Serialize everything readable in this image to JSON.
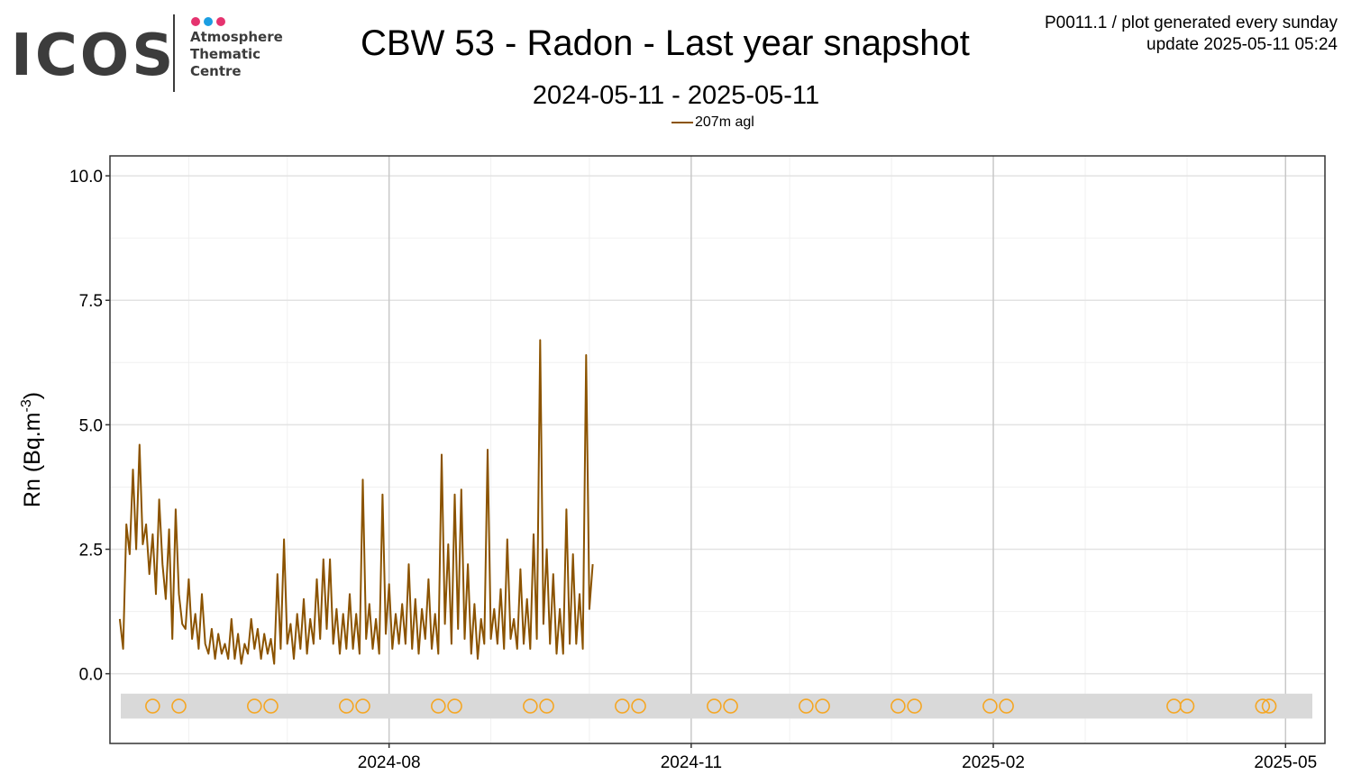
{
  "header": {
    "logo_text": "ICOS",
    "logo_sub": [
      "Atmosphere",
      "Thematic",
      "Centre"
    ],
    "logo_dot_colors": [
      "#e5336f",
      "#1b9ee2",
      "#e5336f"
    ],
    "title": "CBW 53 - Radon - Last year snapshot",
    "subtitle": "2024-05-11 - 2025-05-11",
    "info_line1": "P0011.1 / plot generated every sunday",
    "info_line2": "update  2025-05-11 05:24"
  },
  "legend": {
    "label": "207m agl",
    "color": "#8b5300"
  },
  "chart_data": {
    "type": "line",
    "title": "CBW 53 - Radon - Last year snapshot",
    "subtitle": "2024-05-11 - 2025-05-11",
    "ylabel": "Rn (Bq.m-3)",
    "ylim": [
      -1.4,
      10.4
    ],
    "xlim": [
      "2024-05-08",
      "2025-05-13"
    ],
    "y_ticks": [
      0.0,
      2.5,
      5.0,
      7.5,
      10.0
    ],
    "y_tick_labels": [
      "0.0",
      "2.5",
      "5.0",
      "7.5",
      "10.0"
    ],
    "x_ticks": [
      "2024-08-01",
      "2024-11-01",
      "2025-02-01",
      "2025-05-01"
    ],
    "x_tick_labels": [
      "2024-08",
      "2024-11",
      "2025-02",
      "2025-05"
    ],
    "x_minor_ticks": [
      "2024-06-01",
      "2024-07-01",
      "2024-09-01",
      "2024-10-01",
      "2024-12-01",
      "2025-01-01",
      "2025-03-01",
      "2025-04-01"
    ],
    "grid": true,
    "legend_position": "top",
    "series": [
      {
        "name": "207m agl",
        "color": "#8b5300",
        "points": [
          [
            "2024-05-11",
            1.1
          ],
          [
            "2024-05-12",
            0.5
          ],
          [
            "2024-05-13",
            3.0
          ],
          [
            "2024-05-14",
            2.4
          ],
          [
            "2024-05-15",
            4.1
          ],
          [
            "2024-05-16",
            2.5
          ],
          [
            "2024-05-17",
            4.6
          ],
          [
            "2024-05-18",
            2.6
          ],
          [
            "2024-05-19",
            3.0
          ],
          [
            "2024-05-20",
            2.0
          ],
          [
            "2024-05-21",
            2.8
          ],
          [
            "2024-05-22",
            1.6
          ],
          [
            "2024-05-23",
            3.5
          ],
          [
            "2024-05-24",
            2.2
          ],
          [
            "2024-05-25",
            1.5
          ],
          [
            "2024-05-26",
            2.9
          ],
          [
            "2024-05-27",
            0.7
          ],
          [
            "2024-05-28",
            3.3
          ],
          [
            "2024-05-29",
            1.6
          ],
          [
            "2024-05-30",
            1.0
          ],
          [
            "2024-05-31",
            0.9
          ],
          [
            "2024-06-01",
            1.9
          ],
          [
            "2024-06-02",
            0.7
          ],
          [
            "2024-06-03",
            1.2
          ],
          [
            "2024-06-04",
            0.5
          ],
          [
            "2024-06-05",
            1.6
          ],
          [
            "2024-06-06",
            0.6
          ],
          [
            "2024-06-07",
            0.4
          ],
          [
            "2024-06-08",
            0.9
          ],
          [
            "2024-06-09",
            0.3
          ],
          [
            "2024-06-10",
            0.8
          ],
          [
            "2024-06-11",
            0.4
          ],
          [
            "2024-06-12",
            0.6
          ],
          [
            "2024-06-13",
            0.3
          ],
          [
            "2024-06-14",
            1.1
          ],
          [
            "2024-06-15",
            0.3
          ],
          [
            "2024-06-16",
            0.8
          ],
          [
            "2024-06-17",
            0.2
          ],
          [
            "2024-06-18",
            0.6
          ],
          [
            "2024-06-19",
            0.4
          ],
          [
            "2024-06-20",
            1.1
          ],
          [
            "2024-06-21",
            0.5
          ],
          [
            "2024-06-22",
            0.9
          ],
          [
            "2024-06-23",
            0.3
          ],
          [
            "2024-06-24",
            0.8
          ],
          [
            "2024-06-25",
            0.4
          ],
          [
            "2024-06-26",
            0.7
          ],
          [
            "2024-06-27",
            0.2
          ],
          [
            "2024-06-28",
            2.0
          ],
          [
            "2024-06-29",
            0.5
          ],
          [
            "2024-06-30",
            2.7
          ],
          [
            "2024-07-01",
            0.6
          ],
          [
            "2024-07-02",
            1.0
          ],
          [
            "2024-07-03",
            0.3
          ],
          [
            "2024-07-04",
            1.2
          ],
          [
            "2024-07-05",
            0.5
          ],
          [
            "2024-07-06",
            1.5
          ],
          [
            "2024-07-07",
            0.4
          ],
          [
            "2024-07-08",
            1.1
          ],
          [
            "2024-07-09",
            0.6
          ],
          [
            "2024-07-10",
            1.9
          ],
          [
            "2024-07-11",
            0.7
          ],
          [
            "2024-07-12",
            2.3
          ],
          [
            "2024-07-13",
            0.9
          ],
          [
            "2024-07-14",
            2.3
          ],
          [
            "2024-07-15",
            0.6
          ],
          [
            "2024-07-16",
            1.3
          ],
          [
            "2024-07-17",
            0.4
          ],
          [
            "2024-07-18",
            1.2
          ],
          [
            "2024-07-19",
            0.5
          ],
          [
            "2024-07-20",
            1.6
          ],
          [
            "2024-07-21",
            0.5
          ],
          [
            "2024-07-22",
            1.2
          ],
          [
            "2024-07-23",
            0.4
          ],
          [
            "2024-07-24",
            3.9
          ],
          [
            "2024-07-25",
            0.7
          ],
          [
            "2024-07-26",
            1.4
          ],
          [
            "2024-07-27",
            0.5
          ],
          [
            "2024-07-28",
            1.1
          ],
          [
            "2024-07-29",
            0.4
          ],
          [
            "2024-07-30",
            3.6
          ],
          [
            "2024-07-31",
            0.8
          ],
          [
            "2024-08-01",
            1.8
          ],
          [
            "2024-08-02",
            0.5
          ],
          [
            "2024-08-03",
            1.2
          ],
          [
            "2024-08-04",
            0.6
          ],
          [
            "2024-08-05",
            1.4
          ],
          [
            "2024-08-06",
            0.6
          ],
          [
            "2024-08-07",
            2.2
          ],
          [
            "2024-08-08",
            0.5
          ],
          [
            "2024-08-09",
            1.5
          ],
          [
            "2024-08-10",
            0.4
          ],
          [
            "2024-08-11",
            1.3
          ],
          [
            "2024-08-12",
            0.7
          ],
          [
            "2024-08-13",
            1.9
          ],
          [
            "2024-08-14",
            0.5
          ],
          [
            "2024-08-15",
            1.2
          ],
          [
            "2024-08-16",
            0.4
          ],
          [
            "2024-08-17",
            4.4
          ],
          [
            "2024-08-18",
            1.0
          ],
          [
            "2024-08-19",
            2.6
          ],
          [
            "2024-08-20",
            0.6
          ],
          [
            "2024-08-21",
            3.6
          ],
          [
            "2024-08-22",
            0.9
          ],
          [
            "2024-08-23",
            3.7
          ],
          [
            "2024-08-24",
            0.7
          ],
          [
            "2024-08-25",
            2.2
          ],
          [
            "2024-08-26",
            0.4
          ],
          [
            "2024-08-27",
            1.4
          ],
          [
            "2024-08-28",
            0.3
          ],
          [
            "2024-08-29",
            1.1
          ],
          [
            "2024-08-30",
            0.6
          ],
          [
            "2024-08-31",
            4.5
          ],
          [
            "2024-09-01",
            0.7
          ],
          [
            "2024-09-02",
            1.3
          ],
          [
            "2024-09-03",
            0.6
          ],
          [
            "2024-09-04",
            1.7
          ],
          [
            "2024-09-05",
            0.5
          ],
          [
            "2024-09-06",
            2.7
          ],
          [
            "2024-09-07",
            0.7
          ],
          [
            "2024-09-08",
            1.1
          ],
          [
            "2024-09-09",
            0.5
          ],
          [
            "2024-09-10",
            2.1
          ],
          [
            "2024-09-11",
            0.6
          ],
          [
            "2024-09-12",
            1.5
          ],
          [
            "2024-09-13",
            0.5
          ],
          [
            "2024-09-14",
            2.8
          ],
          [
            "2024-09-15",
            0.7
          ],
          [
            "2024-09-16",
            6.7
          ],
          [
            "2024-09-17",
            1.0
          ],
          [
            "2024-09-18",
            2.5
          ],
          [
            "2024-09-19",
            0.6
          ],
          [
            "2024-09-20",
            2.0
          ],
          [
            "2024-09-21",
            0.4
          ],
          [
            "2024-09-22",
            1.3
          ],
          [
            "2024-09-23",
            0.4
          ],
          [
            "2024-09-24",
            3.3
          ],
          [
            "2024-09-25",
            0.6
          ],
          [
            "2024-09-26",
            2.4
          ],
          [
            "2024-09-27",
            0.6
          ],
          [
            "2024-09-28",
            1.6
          ],
          [
            "2024-09-29",
            0.5
          ],
          [
            "2024-09-30",
            6.4
          ],
          [
            "2024-10-01",
            1.3
          ],
          [
            "2024-10-02",
            2.2
          ]
        ]
      }
    ],
    "markers": {
      "color": "#f5a623",
      "band_y": [
        -0.9,
        -0.4
      ],
      "dates": [
        "2024-05-21",
        "2024-05-29",
        "2024-06-21",
        "2024-06-26",
        "2024-07-19",
        "2024-07-24",
        "2024-08-16",
        "2024-08-21",
        "2024-09-13",
        "2024-09-18",
        "2024-10-11",
        "2024-10-16",
        "2024-11-08",
        "2024-11-13",
        "2024-12-06",
        "2024-12-11",
        "2025-01-03",
        "2025-01-08",
        "2025-01-31",
        "2025-02-05",
        "2025-03-28",
        "2025-04-01",
        "2025-04-24",
        "2025-04-26"
      ]
    }
  }
}
